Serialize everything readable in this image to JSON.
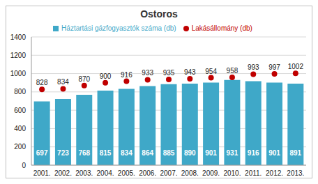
{
  "chart_data": {
    "type": "bar",
    "title": "Ostoros",
    "categories": [
      "2001.",
      "2002.",
      "2003.",
      "2004.",
      "2005.",
      "2006.",
      "2007.",
      "2008.",
      "2009.",
      "2010.",
      "2011.",
      "2012.",
      "2013."
    ],
    "series": [
      {
        "name": "Háztartási gázfogyasztók száma (db)",
        "type": "bar",
        "color": "#3fa8c8",
        "values": [
          697,
          723,
          768,
          815,
          834,
          864,
          885,
          890,
          901,
          931,
          916,
          901,
          891
        ]
      },
      {
        "name": "Lakásállomány (db)",
        "type": "line",
        "marker": "circle",
        "line_style": "none",
        "color": "#c00000",
        "values": [
          828,
          834,
          870,
          900,
          916,
          933,
          935,
          943,
          954,
          958,
          993,
          997,
          1002
        ]
      }
    ],
    "ylim": [
      0,
      1400
    ],
    "yticks": [
      0,
      200,
      400,
      600,
      800,
      1000,
      1200,
      1400
    ],
    "grid": true,
    "legend": "top",
    "data_labels": true
  }
}
